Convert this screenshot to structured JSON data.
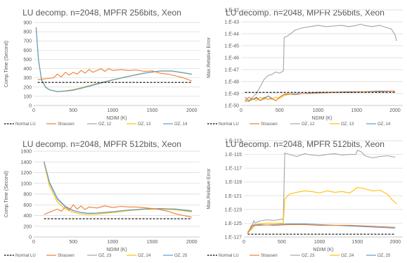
{
  "colors": {
    "normal_lu": "#000000",
    "strassen": "#ED7D31",
    "oz_a": "#A5A5A5",
    "oz_b": "#FFC000",
    "oz_c": "#5B9BD5"
  },
  "chart_data": [
    {
      "type": "line",
      "title": "LU decomp. n=2048, MPFR 256bits, Xeon",
      "xlabel": "NDIM (K)",
      "ylabel": "Comp.Time (Second)",
      "xlim": [
        0,
        2100
      ],
      "ylim": [
        0,
        900
      ],
      "xticks": [
        "0",
        "500",
        "1000",
        "1500",
        "2000"
      ],
      "xtick_values": [
        0,
        500,
        1000,
        1500,
        2000
      ],
      "yticks": [
        "0",
        "100",
        "200",
        "300",
        "400",
        "500",
        "600",
        "700",
        "800",
        "900"
      ],
      "ytick_values": [
        0,
        100,
        200,
        300,
        400,
        500,
        600,
        700,
        800,
        900
      ],
      "log_y": false,
      "grid": true,
      "legend_position": "bottom",
      "series": [
        {
          "name": "Normal LU",
          "style": "dashed",
          "x": [
            50,
            2000
          ],
          "y": [
            250,
            250
          ]
        },
        {
          "name": "Strassen",
          "x": [
            50,
            150,
            250,
            300,
            350,
            400,
            450,
            500,
            550,
            600,
            650,
            700,
            750,
            800,
            850,
            900,
            950,
            1000,
            1100,
            1200,
            1300,
            1400,
            1500,
            1600,
            1700,
            1800,
            1900,
            2000
          ],
          "y": [
            280,
            290,
            300,
            340,
            310,
            360,
            330,
            360,
            340,
            380,
            350,
            390,
            360,
            380,
            400,
            370,
            400,
            380,
            390,
            380,
            385,
            370,
            375,
            350,
            340,
            320,
            300,
            265
          ]
        },
        {
          "name": "OZ, 12",
          "x": [
            30,
            60,
            100,
            150,
            200,
            300,
            400,
            500,
            600,
            800,
            1000,
            1200,
            1400,
            1600,
            1750,
            1900,
            2000
          ],
          "y": [
            850,
            500,
            280,
            200,
            170,
            150,
            155,
            165,
            185,
            230,
            275,
            315,
            350,
            375,
            375,
            355,
            340
          ]
        },
        {
          "name": "OZ, 13",
          "x": [
            30,
            60,
            100,
            150,
            200,
            300,
            400,
            500,
            600,
            800,
            1000,
            1200,
            1400,
            1600,
            1750,
            1900,
            2000
          ],
          "y": [
            840,
            490,
            270,
            195,
            168,
            152,
            160,
            172,
            192,
            238,
            280,
            318,
            352,
            372,
            372,
            352,
            338
          ]
        },
        {
          "name": "OZ, 14",
          "x": [
            30,
            60,
            100,
            150,
            200,
            300,
            400,
            500,
            600,
            800,
            1000,
            1200,
            1400,
            1600,
            1750,
            1900,
            2000
          ],
          "y": [
            845,
            495,
            275,
            198,
            170,
            150,
            156,
            168,
            188,
            234,
            278,
            316,
            350,
            374,
            374,
            354,
            339
          ]
        }
      ]
    },
    {
      "type": "line",
      "title": "LU decomp. n=2048, MPFR 256bits, Xeon",
      "xlabel": "NDIM (K)",
      "ylabel": "Max.Relative Error",
      "xlim": [
        0,
        2100
      ],
      "ylim": [
        -50,
        -42
      ],
      "xticks": [
        "0",
        "500",
        "1000",
        "1500",
        "2000"
      ],
      "xtick_values": [
        0,
        500,
        1000,
        1500,
        2000
      ],
      "yticks": [
        "1.E-50",
        "1.E-49",
        "1.E-48",
        "1.E-47",
        "1.E-46",
        "1.E-45",
        "1.E-44",
        "1.E-43",
        "1.E-42"
      ],
      "ytick_values": [
        -50,
        -49,
        -48,
        -47,
        -46,
        -45,
        -44,
        -43,
        -42
      ],
      "log_y": true,
      "grid": true,
      "legend_position": "bottom",
      "series": [
        {
          "name": "Normal LU",
          "style": "dashed",
          "x": [
            50,
            2000
          ],
          "y": [
            -48.9,
            -48.9
          ]
        },
        {
          "name": "Strassen",
          "x": [
            50,
            100,
            150,
            200,
            250,
            300,
            350,
            400,
            450,
            500,
            550,
            600,
            700,
            800,
            900,
            1000,
            1200,
            1400,
            1600,
            1800,
            2000
          ],
          "y": [
            -49.6,
            -49.3,
            -49.5,
            -49.4,
            -49.6,
            -49.3,
            -49.5,
            -49.4,
            -49.6,
            -49.3,
            -49.1,
            -49.0,
            -49.1,
            -49.0,
            -49.0,
            -48.95,
            -48.9,
            -48.9,
            -48.85,
            -48.85,
            -48.8
          ]
        },
        {
          "name": "OZ, 12",
          "x": [
            50,
            100,
            150,
            200,
            250,
            300,
            350,
            400,
            450,
            500,
            550,
            560,
            600,
            700,
            800,
            900,
            1000,
            1100,
            1200,
            1300,
            1400,
            1500,
            1550,
            1600,
            1700,
            1800,
            1900,
            1950,
            2000,
            2020
          ],
          "y": [
            -49.7,
            -49.6,
            -49.3,
            -49.0,
            -48.4,
            -47.8,
            -47.5,
            -47.4,
            -47.2,
            -47.3,
            -47.1,
            -44.3,
            -44.2,
            -43.7,
            -43.5,
            -43.4,
            -43.3,
            -43.4,
            -43.35,
            -43.3,
            -43.4,
            -43.3,
            -43.2,
            -43.3,
            -43.4,
            -43.3,
            -43.5,
            -43.6,
            -44.1,
            -44.6
          ]
        },
        {
          "name": "OZ, 13",
          "x": [
            50,
            100,
            150,
            200,
            250,
            300,
            350,
            400,
            450,
            500,
            550,
            600,
            700,
            800,
            900,
            1000,
            1200,
            1400,
            1600,
            1800,
            2000
          ],
          "y": [
            -49.5,
            -49.7,
            -49.4,
            -49.6,
            -49.3,
            -49.5,
            -49.2,
            -49.5,
            -49.3,
            -49.4,
            -49.2,
            -49.1,
            -49.0,
            -49.0,
            -48.95,
            -48.9,
            -48.9,
            -48.85,
            -48.85,
            -48.8,
            -48.8
          ]
        },
        {
          "name": "OZ, 14",
          "x": [
            50,
            100,
            150,
            200,
            250,
            300,
            350,
            400,
            450,
            500,
            550,
            600,
            700,
            800,
            900,
            1000,
            1200,
            1400,
            1600,
            1800,
            2000
          ],
          "y": [
            -49.3,
            -49.6,
            -49.5,
            -49.3,
            -49.6,
            -49.4,
            -49.2,
            -49.4,
            -49.6,
            -49.3,
            -49.1,
            -49.05,
            -49.0,
            -49.0,
            -48.95,
            -48.9,
            -48.9,
            -48.85,
            -48.85,
            -48.8,
            -48.8
          ]
        }
      ]
    },
    {
      "type": "line",
      "title": "LU decomp. n=2048, MPFR 512bits, Xeon",
      "xlabel": "NDIM (K)",
      "ylabel": "Comp.Time (Second)",
      "xlim": [
        0,
        2100
      ],
      "ylim": [
        0,
        1600
      ],
      "xticks": [
        "0",
        "500",
        "1000",
        "1500",
        "2000"
      ],
      "xtick_values": [
        0,
        500,
        1000,
        1500,
        2000
      ],
      "yticks": [
        "0",
        "200",
        "400",
        "600",
        "800",
        "1000",
        "1200",
        "1400",
        "1600"
      ],
      "ytick_values": [
        0,
        200,
        400,
        600,
        800,
        1000,
        1200,
        1400,
        1600
      ],
      "log_y": false,
      "grid": true,
      "legend_position": "bottom",
      "series": [
        {
          "name": "Normal LU",
          "style": "dashed",
          "x": [
            130,
            2000
          ],
          "y": [
            340,
            340
          ]
        },
        {
          "name": "Strassen",
          "x": [
            130,
            200,
            300,
            350,
            400,
            450,
            500,
            550,
            600,
            650,
            700,
            800,
            900,
            1000,
            1100,
            1200,
            1300,
            1400,
            1500,
            1600,
            1700,
            1800,
            1900,
            2000
          ],
          "y": [
            420,
            460,
            520,
            480,
            560,
            500,
            600,
            520,
            580,
            510,
            560,
            540,
            580,
            550,
            570,
            560,
            560,
            545,
            530,
            510,
            480,
            430,
            400,
            370
          ]
        },
        {
          "name": "OZ, 23",
          "x": [
            130,
            200,
            300,
            400,
            500,
            600,
            700,
            800,
            1000,
            1200,
            1400,
            1600,
            1800,
            2000
          ],
          "y": [
            1400,
            1000,
            700,
            560,
            490,
            455,
            440,
            445,
            470,
            500,
            520,
            525,
            520,
            490
          ]
        },
        {
          "name": "OZ, 24",
          "x": [
            130,
            200,
            300,
            400,
            500,
            600,
            700,
            800,
            1000,
            1200,
            1400,
            1600,
            1800,
            2000
          ],
          "y": [
            1380,
            950,
            650,
            520,
            460,
            430,
            420,
            425,
            455,
            490,
            515,
            520,
            505,
            470
          ]
        },
        {
          "name": "OZ, 25",
          "x": [
            130,
            200,
            300,
            400,
            500,
            600,
            700,
            800,
            1000,
            1200,
            1400,
            1600,
            1800,
            2000
          ],
          "y": [
            1410,
            1020,
            720,
            570,
            495,
            458,
            442,
            447,
            472,
            502,
            522,
            530,
            520,
            480
          ]
        }
      ]
    },
    {
      "type": "line",
      "title": "LU decomp. n=2048, MPFR 512bits, Xeon",
      "xlabel": "NDIM (K)",
      "ylabel": "Max.Relative Error",
      "xlim": [
        0,
        2100
      ],
      "ylim": [
        -127,
        -113
      ],
      "xticks": [
        "0",
        "500",
        "1000",
        "1500",
        "2000"
      ],
      "xtick_values": [
        0,
        500,
        1000,
        1500,
        2000
      ],
      "yticks": [
        "1.E-127",
        "1.E-125",
        "1.E-123",
        "1.E-121",
        "1.E-119",
        "1.E-117",
        "1.E-115",
        "1.E-113"
      ],
      "ytick_values": [
        -127,
        -125,
        -123,
        -121,
        -119,
        -117,
        -115,
        -113
      ],
      "log_y": true,
      "grid": true,
      "legend_position": "bottom",
      "series": [
        {
          "name": "Normal LU",
          "style": "dashed",
          "x": [
            50,
            2000
          ],
          "y": [
            -126.6,
            -126.6
          ]
        },
        {
          "name": "Strassen",
          "x": [
            50,
            100,
            150,
            200,
            400,
            600,
            800,
            1000,
            1200,
            1400,
            1600,
            1800,
            2000
          ],
          "y": [
            -126.5,
            -125.3,
            -125.2,
            -125.2,
            -125.3,
            -125.2,
            -125.2,
            -125.3,
            -125.3,
            -125.3,
            -125.4,
            -125.5,
            -125.6
          ]
        },
        {
          "name": "OZ, 23",
          "x": [
            50,
            100,
            130,
            150,
            200,
            300,
            400,
            500,
            520,
            540,
            600,
            700,
            800,
            900,
            1000,
            1100,
            1200,
            1300,
            1400,
            1480,
            1500,
            1550,
            1600,
            1700,
            1800,
            1900,
            2000
          ],
          "y": [
            -126.2,
            -125.8,
            -124.6,
            -125.0,
            -124.7,
            -124.5,
            -124.6,
            -124.4,
            -124.5,
            -114.8,
            -115.0,
            -115.3,
            -114.9,
            -115.1,
            -115.2,
            -115.0,
            -114.9,
            -115.1,
            -115.0,
            -115.0,
            -114.4,
            -114.6,
            -115.2,
            -115.5,
            -115.3,
            -115.2,
            -115.4
          ]
        },
        {
          "name": "OZ, 24",
          "x": [
            50,
            100,
            150,
            200,
            300,
            400,
            500,
            520,
            540,
            600,
            700,
            800,
            900,
            1000,
            1100,
            1200,
            1300,
            1400,
            1500,
            1600,
            1700,
            1800,
            1900,
            1950,
            2000,
            2020
          ],
          "y": [
            -126.4,
            -125.9,
            -125.3,
            -125.1,
            -125.0,
            -125.0,
            -125.0,
            -125.0,
            -121.5,
            -120.8,
            -120.5,
            -120.3,
            -120.4,
            -120.6,
            -120.3,
            -120.5,
            -120.4,
            -120.6,
            -119.8,
            -120.0,
            -120.3,
            -120.2,
            -120.8,
            -121.5,
            -122.0,
            -122.2
          ]
        },
        {
          "name": "OZ, 25",
          "x": [
            50,
            100,
            150,
            200,
            400,
            600,
            800,
            1000,
            1200,
            1400,
            1600,
            1800,
            2000
          ],
          "y": [
            -126.4,
            -125.5,
            -125.3,
            -125.3,
            -125.2,
            -125.1,
            -125.1,
            -125.2,
            -125.3,
            -125.4,
            -125.5,
            -125.6,
            -125.7
          ]
        }
      ]
    }
  ]
}
